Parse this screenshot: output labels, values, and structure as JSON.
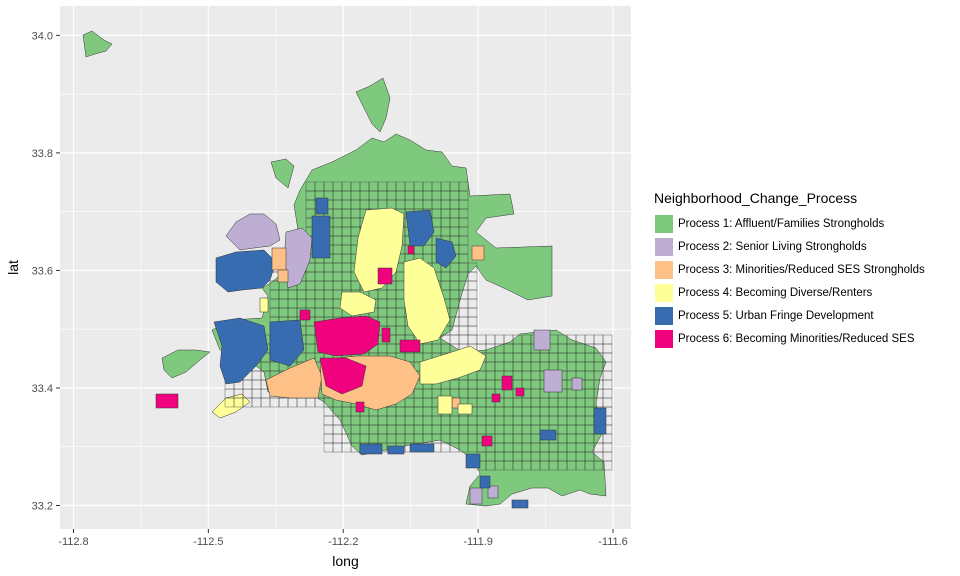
{
  "chart_data": {
    "type": "choropleth",
    "title": "",
    "xlabel": "long",
    "ylabel": "lat",
    "xlim": [
      -112.83,
      -111.56
    ],
    "ylim": [
      33.16,
      34.05
    ],
    "x_ticks": [
      -112.8,
      -112.5,
      -112.2,
      -111.9,
      -111.6
    ],
    "x_tick_labels": [
      "-112.8",
      "-112.5",
      "-112.2",
      "-111.9",
      "-111.6"
    ],
    "y_ticks": [
      33.2,
      33.4,
      33.6,
      33.8,
      34.0
    ],
    "y_tick_labels": [
      "33.2",
      "33.4",
      "33.6",
      "33.8",
      "34.0"
    ],
    "grid": true,
    "legend": {
      "title": "Neighborhood_Change_Process",
      "placement": "right",
      "items": [
        {
          "label": "Process 1: Affluent/Families Strongholds",
          "color": "#7FC97F"
        },
        {
          "label": "Process 2: Senior Living Strongholds",
          "color": "#BEAED4"
        },
        {
          "label": "Process 3: Minorities/Reduced SES Strongholds",
          "color": "#FDC086"
        },
        {
          "label": "Process 4: Becoming Diverse/Renters",
          "color": "#FFFF99"
        },
        {
          "label": "Process 5: Urban Fringe Development",
          "color": "#386CB0"
        },
        {
          "label": "Process 6: Becoming Minorities/Reduced SES",
          "color": "#F0027F"
        }
      ]
    }
  }
}
